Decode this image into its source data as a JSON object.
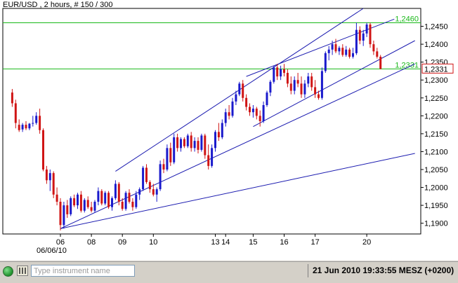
{
  "chart_title": "EUR/USD , 2 hours, # 150 / 300",
  "colors": {
    "bull_candle": "#1a1acc",
    "bear_candle": "#d01515",
    "level_line": "#18b818",
    "trend_line": "#1c1cb0",
    "current_price_box": "#d01515",
    "axis": "#000000"
  },
  "chart_data": {
    "type": "candlestick",
    "symbol": "EUR/USD",
    "timeframe": "2 hours",
    "bar_counter": "# 150 / 300",
    "y_axis": {
      "min": 1.187,
      "max": 1.25,
      "ticks": [
        "1,2450",
        "1,2400",
        "1,2350",
        "1,2300",
        "1,2250",
        "1,2200",
        "1,2150",
        "1,2100",
        "1,2050",
        "1,2000",
        "1,1950",
        "1,1900"
      ],
      "tick_values": [
        1.245,
        1.24,
        1.235,
        1.23,
        1.225,
        1.22,
        1.215,
        1.21,
        1.205,
        1.2,
        1.195,
        1.19
      ]
    },
    "x_axis": {
      "tick_labels": [
        "06",
        "08",
        "09",
        "10",
        "13",
        "14",
        "15",
        "16",
        "17",
        "20"
      ],
      "tick_bar_index": [
        0,
        9,
        18,
        27,
        45,
        48,
        56,
        65,
        74,
        89
      ],
      "date_label": "06/06/10"
    },
    "first_bar_index": -14,
    "levels": [
      {
        "label": "1,2460",
        "value": 1.246
      },
      {
        "label": "1,2331",
        "value": 1.2331
      }
    ],
    "current_price": {
      "label": "1,2331",
      "value": 1.2331
    },
    "trendlines": [
      {
        "from": {
          "bar": 0,
          "price": 1.1885
        },
        "to": {
          "bar": 103,
          "price": 1.2095
        }
      },
      {
        "from": {
          "bar": 0,
          "price": 1.1885
        },
        "to": {
          "bar": 103,
          "price": 1.2345
        }
      },
      {
        "from": {
          "bar": 16,
          "price": 1.2045
        },
        "to": {
          "bar": 88,
          "price": 1.25
        }
      },
      {
        "from": {
          "bar": 56,
          "price": 1.217
        },
        "to": {
          "bar": 103,
          "price": 1.241
        }
      },
      {
        "from": {
          "bar": 54,
          "price": 1.231
        },
        "to": {
          "bar": 97,
          "price": 1.247
        }
      }
    ],
    "candles": [
      [
        1.2265,
        1.2275,
        1.2225,
        1.2235
      ],
      [
        1.2235,
        1.2245,
        1.2165,
        1.218
      ],
      [
        1.2175,
        1.219,
        1.2155,
        1.216
      ],
      [
        1.2162,
        1.218,
        1.2155,
        1.2175
      ],
      [
        1.2175,
        1.2185,
        1.216,
        1.2165
      ],
      [
        1.2165,
        1.218,
        1.216,
        1.2178
      ],
      [
        1.2178,
        1.22,
        1.217,
        1.218
      ],
      [
        1.218,
        1.221,
        1.2175,
        1.22
      ],
      [
        1.22,
        1.222,
        1.215,
        1.216
      ],
      [
        1.216,
        1.2165,
        1.2045,
        1.205
      ],
      [
        1.205,
        1.206,
        1.201,
        1.202
      ],
      [
        1.202,
        1.205,
        1.199,
        1.204
      ],
      [
        1.204,
        1.2045,
        1.197,
        1.198
      ],
      [
        1.198,
        1.2,
        1.195,
        1.196
      ],
      [
        1.196,
        1.197,
        1.188,
        1.1895
      ],
      [
        1.1895,
        1.196,
        1.1885,
        1.195
      ],
      [
        1.195,
        1.1965,
        1.1915,
        1.1925
      ],
      [
        1.1925,
        1.1975,
        1.192,
        1.197
      ],
      [
        1.197,
        1.198,
        1.1945,
        1.195
      ],
      [
        1.195,
        1.1985,
        1.194,
        1.198
      ],
      [
        1.198,
        1.199,
        1.193,
        1.1935
      ],
      [
        1.1935,
        1.197,
        1.193,
        1.1965
      ],
      [
        1.1965,
        1.1975,
        1.194,
        1.1945
      ],
      [
        1.1945,
        1.196,
        1.193,
        1.1935
      ],
      [
        1.1935,
        1.1965,
        1.193,
        1.196
      ],
      [
        1.196,
        1.2,
        1.195,
        1.199
      ],
      [
        1.199,
        1.1995,
        1.195,
        1.1955
      ],
      [
        1.1955,
        1.199,
        1.195,
        1.1985
      ],
      [
        1.1985,
        1.199,
        1.194,
        1.1945
      ],
      [
        1.1945,
        1.1975,
        1.1935,
        1.197
      ],
      [
        1.197,
        1.202,
        1.1965,
        1.201
      ],
      [
        1.201,
        1.2015,
        1.195,
        1.196
      ],
      [
        1.196,
        1.197,
        1.1935,
        1.194
      ],
      [
        1.194,
        1.199,
        1.1935,
        1.1985
      ],
      [
        1.1985,
        1.1995,
        1.1955,
        1.196
      ],
      [
        1.196,
        1.197,
        1.1935,
        1.1945
      ],
      [
        1.1945,
        1.199,
        1.194,
        1.198
      ],
      [
        1.198,
        1.2,
        1.1965,
        1.1995
      ],
      [
        1.1995,
        1.206,
        1.199,
        1.2055
      ],
      [
        1.2055,
        1.2065,
        1.201,
        1.2015
      ],
      [
        1.2015,
        1.202,
        1.1985,
        1.1995
      ],
      [
        1.1995,
        1.201,
        1.1975,
        1.198
      ],
      [
        1.198,
        1.2,
        1.196,
        1.1995
      ],
      [
        1.1995,
        1.2075,
        1.199,
        1.2065
      ],
      [
        1.2065,
        1.208,
        1.204,
        1.205
      ],
      [
        1.205,
        1.212,
        1.2045,
        1.211
      ],
      [
        1.211,
        1.2125,
        1.206,
        1.207
      ],
      [
        1.207,
        1.215,
        1.2065,
        1.214
      ],
      [
        1.214,
        1.215,
        1.21,
        1.211
      ],
      [
        1.211,
        1.214,
        1.21,
        1.2135
      ],
      [
        1.2135,
        1.214,
        1.211,
        1.2115
      ],
      [
        1.2115,
        1.215,
        1.211,
        1.2145
      ],
      [
        1.2145,
        1.2155,
        1.21,
        1.211
      ],
      [
        1.211,
        1.214,
        1.21,
        1.213
      ],
      [
        1.213,
        1.214,
        1.2095,
        1.2105
      ],
      [
        1.2105,
        1.215,
        1.21,
        1.2145
      ],
      [
        1.2145,
        1.215,
        1.208,
        1.209
      ],
      [
        1.209,
        1.212,
        1.205,
        1.206
      ],
      [
        1.206,
        1.212,
        1.2055,
        1.211
      ],
      [
        1.211,
        1.216,
        1.21,
        1.2155
      ],
      [
        1.2155,
        1.218,
        1.213,
        1.214
      ],
      [
        1.214,
        1.219,
        1.2135,
        1.218
      ],
      [
        1.218,
        1.222,
        1.217,
        1.221
      ],
      [
        1.221,
        1.223,
        1.219,
        1.22
      ],
      [
        1.22,
        1.225,
        1.2195,
        1.224
      ],
      [
        1.224,
        1.227,
        1.223,
        1.226
      ],
      [
        1.226,
        1.2295,
        1.2255,
        1.229
      ],
      [
        1.229,
        1.23,
        1.224,
        1.225
      ],
      [
        1.225,
        1.226,
        1.2215,
        1.2225
      ],
      [
        1.2225,
        1.2235,
        1.22,
        1.221
      ],
      [
        1.221,
        1.223,
        1.2195,
        1.222
      ],
      [
        1.222,
        1.2225,
        1.219,
        1.22
      ],
      [
        1.22,
        1.2215,
        1.217,
        1.2185
      ],
      [
        1.2185,
        1.224,
        1.218,
        1.223
      ],
      [
        1.223,
        1.227,
        1.2225,
        1.2265
      ],
      [
        1.2265,
        1.23,
        1.2255,
        1.2295
      ],
      [
        1.2295,
        1.234,
        1.229,
        1.2335
      ],
      [
        1.2335,
        1.2345,
        1.23,
        1.231
      ],
      [
        1.231,
        1.234,
        1.23,
        1.233
      ],
      [
        1.233,
        1.2345,
        1.231,
        1.232
      ],
      [
        1.232,
        1.233,
        1.228,
        1.229
      ],
      [
        1.229,
        1.231,
        1.226,
        1.227
      ],
      [
        1.227,
        1.231,
        1.226,
        1.23
      ],
      [
        1.23,
        1.232,
        1.228,
        1.229
      ],
      [
        1.229,
        1.231,
        1.225,
        1.226
      ],
      [
        1.226,
        1.23,
        1.225,
        1.229
      ],
      [
        1.229,
        1.232,
        1.228,
        1.231
      ],
      [
        1.231,
        1.232,
        1.227,
        1.228
      ],
      [
        1.228,
        1.23,
        1.225,
        1.226
      ],
      [
        1.226,
        1.227,
        1.2245,
        1.225
      ],
      [
        1.225,
        1.2335,
        1.2245,
        1.2325
      ],
      [
        1.2325,
        1.238,
        1.232,
        1.2375
      ],
      [
        1.2375,
        1.2395,
        1.2355,
        1.2385
      ],
      [
        1.2385,
        1.241,
        1.237,
        1.24
      ],
      [
        1.24,
        1.2415,
        1.2375,
        1.238
      ],
      [
        1.238,
        1.2395,
        1.237,
        1.239
      ],
      [
        1.239,
        1.24,
        1.2365,
        1.237
      ],
      [
        1.237,
        1.2395,
        1.2365,
        1.2385
      ],
      [
        1.2385,
        1.239,
        1.236,
        1.2365
      ],
      [
        1.2365,
        1.239,
        1.236,
        1.2375
      ],
      [
        1.2375,
        1.246,
        1.237,
        1.244
      ],
      [
        1.244,
        1.245,
        1.24,
        1.241
      ],
      [
        1.241,
        1.244,
        1.2395,
        1.243
      ],
      [
        1.243,
        1.246,
        1.242,
        1.2455
      ],
      [
        1.2455,
        1.246,
        1.239,
        1.24
      ],
      [
        1.24,
        1.241,
        1.237,
        1.238
      ],
      [
        1.238,
        1.239,
        1.236,
        1.2365
      ],
      [
        1.2365,
        1.237,
        1.233,
        1.2331
      ]
    ]
  },
  "status_bar": {
    "search_placeholder": "Type instrument name",
    "datetime": "21 Jun 2010 19:33:55  MESZ (+0200)"
  },
  "icons": {
    "connection": "connection-status-icon",
    "menu": "instrument-menu-icon"
  }
}
